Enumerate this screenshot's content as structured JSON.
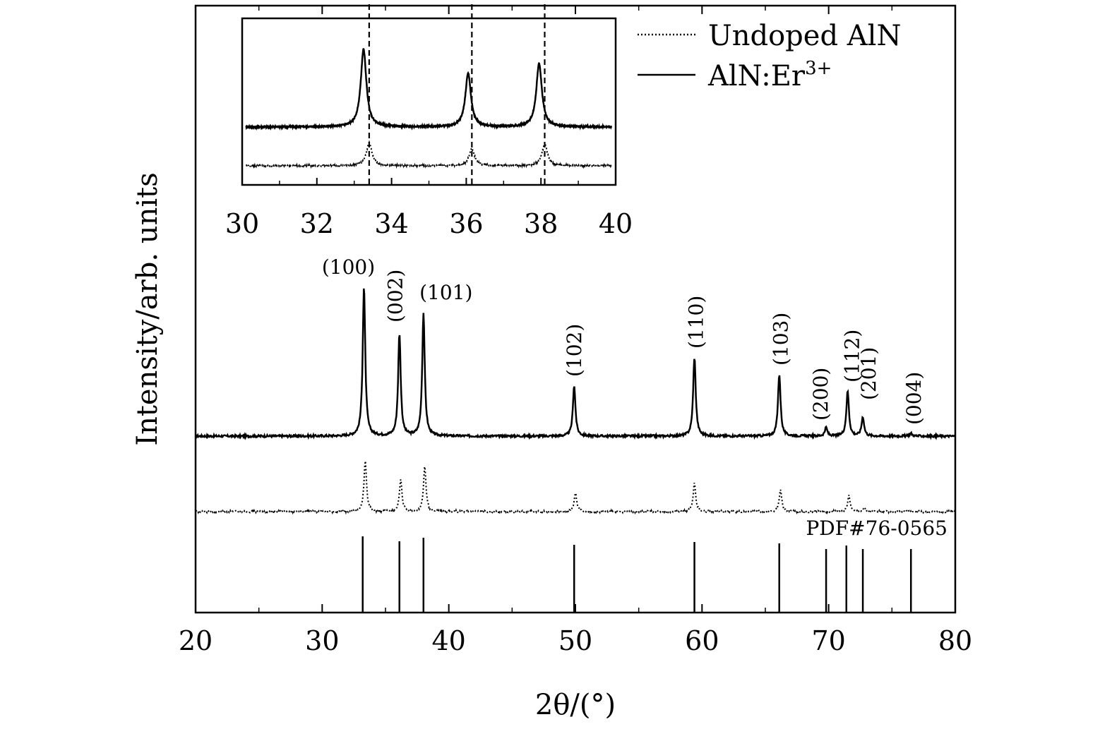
{
  "chart_data": {
    "type": "line",
    "xlabel": "2θ/(°)",
    "ylabel": "Intensity/arb. units",
    "xlim": [
      20,
      80
    ],
    "x_ticks": [
      "20",
      "30",
      "40",
      "50",
      "60",
      "70",
      "80"
    ],
    "legend": {
      "placement": "top-right",
      "entries": [
        {
          "label": "Undoped AlN",
          "style": "dotted"
        },
        {
          "label": "AlN:Er",
          "superscript": "3+",
          "style": "solid"
        }
      ]
    },
    "series": [
      {
        "name": "AlN:Er3+",
        "style": "solid",
        "baseline": 0,
        "peaks": [
          {
            "x": 33.3,
            "height": 212,
            "hkl": "(100)"
          },
          {
            "x": 36.1,
            "height": 145,
            "hkl": "(002)"
          },
          {
            "x": 38.0,
            "height": 174,
            "hkl": "(101)"
          },
          {
            "x": 49.9,
            "height": 72,
            "hkl": "(102)"
          },
          {
            "x": 59.4,
            "height": 112,
            "hkl": "(110)"
          },
          {
            "x": 66.1,
            "height": 88,
            "hkl": "(103)"
          },
          {
            "x": 69.8,
            "height": 12,
            "hkl": "(200)"
          },
          {
            "x": 71.5,
            "height": 64,
            "hkl": "(112)"
          },
          {
            "x": 72.7,
            "height": 27,
            "hkl": "(201)"
          },
          {
            "x": 76.5,
            "height": 4,
            "hkl": "(004)"
          }
        ]
      },
      {
        "name": "Undoped AlN",
        "style": "dotted",
        "baseline": 0,
        "peaks": [
          {
            "x": 33.4,
            "height": 72
          },
          {
            "x": 36.2,
            "height": 44
          },
          {
            "x": 38.1,
            "height": 63
          },
          {
            "x": 50.0,
            "height": 26
          },
          {
            "x": 59.4,
            "height": 40
          },
          {
            "x": 66.2,
            "height": 31
          },
          {
            "x": 71.6,
            "height": 22
          },
          {
            "x": 72.8,
            "height": 6
          }
        ]
      }
    ],
    "reference": {
      "label": "PDF#76-0565",
      "lines": [
        {
          "x": 33.2,
          "height": 108
        },
        {
          "x": 36.1,
          "height": 101
        },
        {
          "x": 38.0,
          "height": 106
        },
        {
          "x": 49.9,
          "height": 96
        },
        {
          "x": 59.4,
          "height": 100
        },
        {
          "x": 66.1,
          "height": 98
        },
        {
          "x": 69.8,
          "height": 90
        },
        {
          "x": 71.4,
          "height": 95
        },
        {
          "x": 72.7,
          "height": 90
        },
        {
          "x": 76.5,
          "height": 90
        }
      ]
    },
    "inset": {
      "xlim": [
        30,
        40
      ],
      "x_ticks": [
        "30",
        "32",
        "34",
        "36",
        "38",
        "40"
      ],
      "dashed_lines_x": [
        33.4,
        36.15,
        38.1
      ],
      "series": [
        {
          "name": "AlN:Er3+",
          "style": "solid",
          "peaks": [
            {
              "x": 33.25,
              "height": 110
            },
            {
              "x": 36.05,
              "height": 76
            },
            {
              "x": 37.95,
              "height": 90
            }
          ]
        },
        {
          "name": "Undoped AlN",
          "style": "dotted",
          "peaks": [
            {
              "x": 33.4,
              "height": 32
            },
            {
              "x": 36.15,
              "height": 24
            },
            {
              "x": 38.1,
              "height": 30
            }
          ]
        }
      ]
    }
  }
}
